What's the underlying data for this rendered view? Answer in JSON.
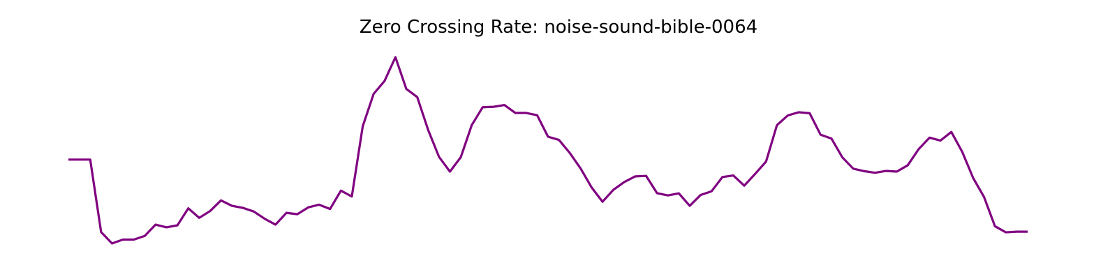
{
  "chart_data": {
    "type": "line",
    "title": "Zero Crossing Rate: noise-sound-bible-0064",
    "xlabel": "",
    "ylabel": "",
    "axes_visible": false,
    "grid": false,
    "legend": "none",
    "series": [
      {
        "color": "#800080",
        "values": [
          0.465,
          0.465,
          0.465,
          0.145,
          0.095,
          0.112,
          0.112,
          0.128,
          0.178,
          0.166,
          0.175,
          0.25,
          0.208,
          0.238,
          0.285,
          0.261,
          0.252,
          0.236,
          0.204,
          0.178,
          0.23,
          0.224,
          0.254,
          0.266,
          0.247,
          0.328,
          0.302,
          0.612,
          0.755,
          0.812,
          0.917,
          0.777,
          0.741,
          0.596,
          0.477,
          0.412,
          0.476,
          0.617,
          0.696,
          0.698,
          0.706,
          0.671,
          0.671,
          0.661,
          0.566,
          0.552,
          0.494,
          0.425,
          0.342,
          0.279,
          0.332,
          0.366,
          0.391,
          0.393,
          0.317,
          0.307,
          0.316,
          0.261,
          0.309,
          0.325,
          0.388,
          0.395,
          0.35,
          0.402,
          0.456,
          0.617,
          0.66,
          0.674,
          0.67,
          0.575,
          0.558,
          0.475,
          0.425,
          0.414,
          0.407,
          0.415,
          0.412,
          0.44,
          0.511,
          0.562,
          0.549,
          0.587,
          0.499,
          0.384,
          0.3,
          0.171,
          0.144,
          0.147,
          0.147
        ]
      }
    ]
  }
}
